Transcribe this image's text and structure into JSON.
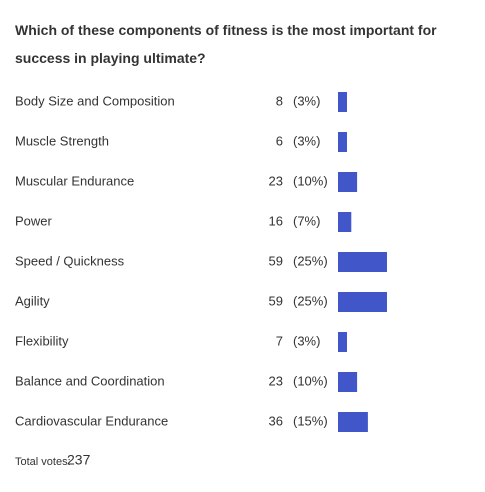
{
  "chart_data": {
    "type": "bar",
    "orientation": "horizontal",
    "title": "Which of these components of fitness is the most important for success in playing ultimate?",
    "categories": [
      "Body Size and Composition",
      "Muscle Strength",
      "Muscular Endurance",
      "Power",
      "Speed / Quickness",
      "Agility",
      "Flexibility",
      "Balance and Coordination",
      "Cardiovascular Endurance"
    ],
    "values": [
      8,
      6,
      23,
      16,
      59,
      59,
      7,
      23,
      36
    ],
    "percent_labels": [
      "(3%)",
      "(3%)",
      "(10%)",
      "(7%)",
      "(25%)",
      "(25%)",
      "(3%)",
      "(10%)",
      "(15%)"
    ],
    "color": "#4157c9",
    "total_label": "Total votes:",
    "total": 237
  }
}
